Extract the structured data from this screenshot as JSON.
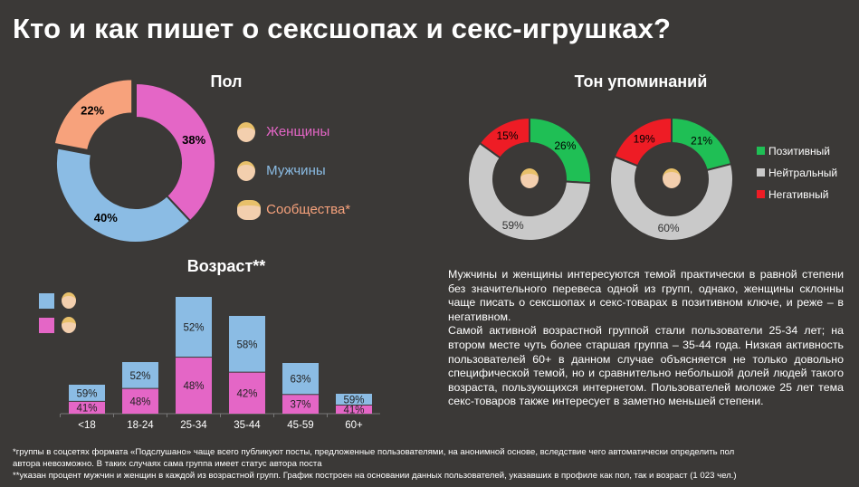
{
  "title": "Кто и как пишет о сексшопах и секс-игрушках?",
  "colors": {
    "women": "#e466c6",
    "men": "#8bbce4",
    "communities": "#f7a27c",
    "positive": "#1fbf55",
    "neutral": "#c9c9c9",
    "negative": "#ee1c25",
    "background": "#3b3937"
  },
  "chart_data": [
    {
      "type": "pie",
      "title": "Пол",
      "donut": true,
      "slices": [
        {
          "name": "Женщины",
          "value": 38,
          "label": "38%"
        },
        {
          "name": "Мужчины",
          "value": 40,
          "label": "40%"
        },
        {
          "name": "Сообщества*",
          "value": 22,
          "label": "22%"
        }
      ],
      "legend": [
        "Женщины",
        "Мужчины",
        "Сообщества*"
      ],
      "legend_placement": "right"
    },
    {
      "type": "pie",
      "title": "Тон упоминаний",
      "group": "women",
      "donut": true,
      "slices": [
        {
          "name": "Позитивный",
          "value": 26,
          "label": "26%"
        },
        {
          "name": "Нейтральный",
          "value": 59,
          "label": "59%"
        },
        {
          "name": "Негативный",
          "value": 15,
          "label": "15%"
        }
      ]
    },
    {
      "type": "pie",
      "title": "Тон упоминаний",
      "group": "men",
      "donut": true,
      "slices": [
        {
          "name": "Позитивный",
          "value": 21,
          "label": "21%"
        },
        {
          "name": "Нейтральный",
          "value": 60,
          "label": "60%"
        },
        {
          "name": "Негативный",
          "value": 19,
          "label": "19%"
        }
      ],
      "legend": [
        "Позитивный",
        "Нейтральный",
        "Негативный"
      ],
      "legend_placement": "right"
    },
    {
      "type": "bar",
      "stacked": true,
      "title": "Возраст**",
      "categories": [
        "<18",
        "18-24",
        "25-34",
        "35-44",
        "45-59",
        "60+"
      ],
      "relative_total": [
        32,
        57,
        129,
        108,
        56,
        22
      ],
      "series": [
        {
          "key": "women",
          "values": [
            41,
            48,
            48,
            42,
            37,
            41
          ]
        },
        {
          "key": "men",
          "values": [
            59,
            52,
            52,
            58,
            63,
            59
          ]
        }
      ],
      "legend_placement": "top-left"
    }
  ],
  "paragraph": "Мужчины и женщины интересуются темой практически в равной степени без значительного перевеса одной из групп, однако, женщины склонны чаще писать о сексшопах и секс-товарах в позитивном ключе, и реже – в негативном.\nСамой активной возрастной группой стали пользователи 25-34 лет; на втором месте чуть более старшая группа – 35-44 года. Низкая активность пользователей 60+ в данном случае объясняется не только довольно специфической темой, но и сравнительно небольшой долей людей такого возраста, пользующихся интернетом. Пользователей моложе 25 лет тема секс-товаров также интересует в заметно меньшей степени.",
  "footnote1": "*группы в соцсетях формата «Подслушано» чаще всего публикуют посты, предложенные пользователями, на анонимной основе, вследствие чего автоматически определить пол",
  "footnote1b": "автора невозможно. В таких случаях сама группа имеет статус автора поста",
  "footnote2": "**указан процент мужчин и женщин в каждой из возрастной групп. График построен на основании данных пользователей, указавших в профиле как пол, так и возраст (1 023 чел.)"
}
